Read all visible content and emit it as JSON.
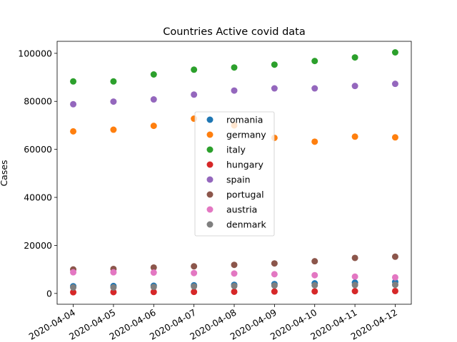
{
  "chart_data": {
    "type": "scatter",
    "title": "Countries Active covid data",
    "xlabel": "",
    "ylabel": "Cases",
    "x": [
      "2020-04-04",
      "2020-04-05",
      "2020-04-06",
      "2020-04-07",
      "2020-04-08",
      "2020-04-09",
      "2020-04-10",
      "2020-04-11",
      "2020-04-12"
    ],
    "xlim": [
      -0.4,
      8.4
    ],
    "ylim": [
      -4500,
      105000
    ],
    "yticks": [
      0,
      20000,
      40000,
      60000,
      80000,
      100000
    ],
    "grid": false,
    "legend_position": "center",
    "series": [
      {
        "name": "romania",
        "color": "#1f77b4",
        "values": [
          3000,
          3100,
          3200,
          3400,
          3600,
          3900,
          4200,
          4500,
          4800
        ]
      },
      {
        "name": "germany",
        "color": "#ff7f0e",
        "values": [
          67500,
          68200,
          69800,
          72800,
          70000,
          64800,
          63200,
          65300,
          65000
        ]
      },
      {
        "name": "italy",
        "color": "#2ca02c",
        "values": [
          88300,
          88300,
          91200,
          93200,
          94100,
          95300,
          96800,
          98300,
          100400
        ]
      },
      {
        "name": "hungary",
        "color": "#d62728",
        "values": [
          500,
          550,
          600,
          650,
          700,
          800,
          850,
          950,
          1000
        ]
      },
      {
        "name": "spain",
        "color": "#9467bd",
        "values": [
          78800,
          79900,
          80800,
          82800,
          84500,
          85400,
          85400,
          86400,
          87300
        ]
      },
      {
        "name": "portugal",
        "color": "#8c564b",
        "values": [
          10000,
          10200,
          10800,
          11300,
          11900,
          12500,
          13400,
          14800,
          15300
        ]
      },
      {
        "name": "austria",
        "color": "#e377c2",
        "values": [
          8800,
          8800,
          8700,
          8500,
          8300,
          8000,
          7600,
          7000,
          6700
        ]
      },
      {
        "name": "denmark",
        "color": "#7f7f7f",
        "values": [
          2500,
          2500,
          2700,
          2900,
          3100,
          3300,
          3400,
          3500,
          3600
        ]
      }
    ]
  }
}
